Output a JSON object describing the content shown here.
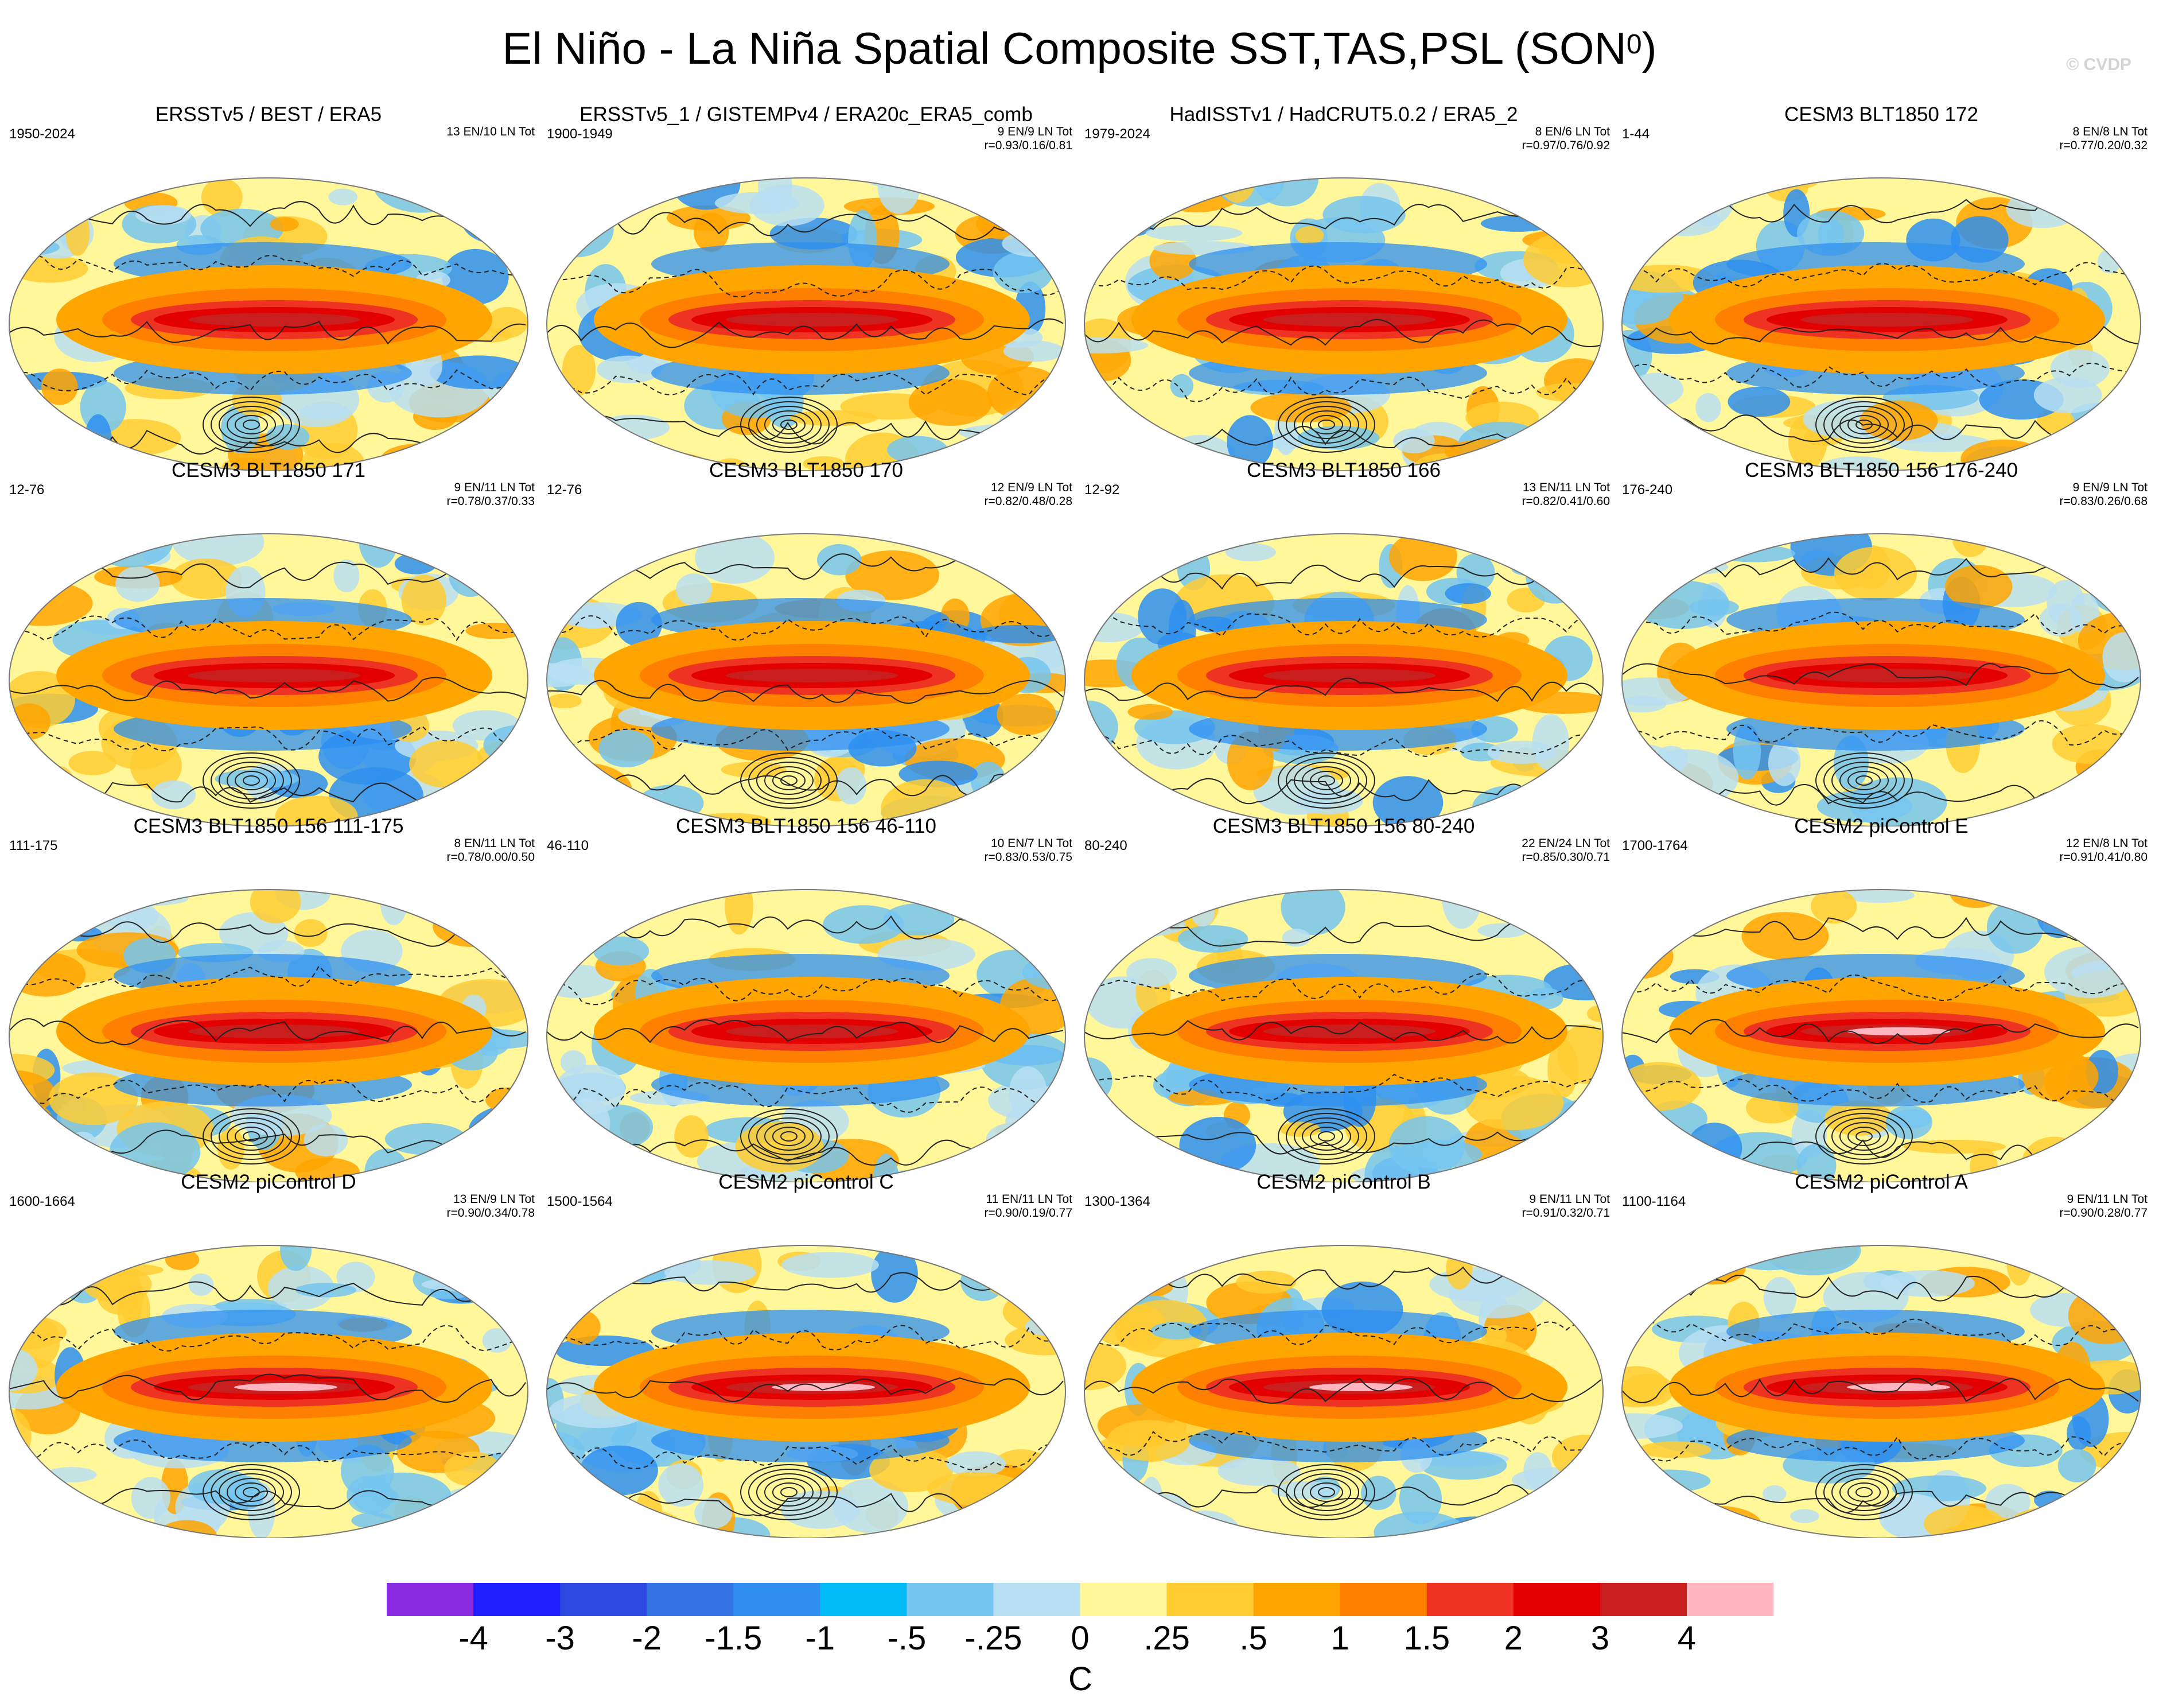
{
  "title": "El Niño - La Niña Spatial Composite SST,TAS,PSL (SON",
  "title_superscript": "0",
  "title_close": ")",
  "watermark": "© CVDP",
  "chart_data": {
    "type": "heatmap",
    "description_fields": [
      "title",
      "period",
      "count",
      "stats"
    ],
    "panels": [
      {
        "title": "ERSSTv5 / BEST / ERA5",
        "period": "1950-2024",
        "count": "13 EN/10 LN Tot",
        "stats": ""
      },
      {
        "title": "ERSSTv5_1 / GISTEMPv4 / ERA20c_ERA5_comb",
        "period": "1900-1949",
        "count": "9 EN/9 LN Tot",
        "stats": "r=0.93/0.16/0.81"
      },
      {
        "title": "HadISSTv1 / HadCRUT5.0.2 / ERA5_2",
        "period": "1979-2024",
        "count": "8 EN/6 LN Tot",
        "stats": "r=0.97/0.76/0.92"
      },
      {
        "title": "CESM3 BLT1850 172",
        "period": "1-44",
        "count": "8 EN/8 LN Tot",
        "stats": "r=0.77/0.20/0.32"
      },
      {
        "title": "CESM3 BLT1850 171",
        "period": "12-76",
        "count": "9 EN/11 LN Tot",
        "stats": "r=0.78/0.37/0.33"
      },
      {
        "title": "CESM3 BLT1850 170",
        "period": "12-76",
        "count": "12 EN/9 LN Tot",
        "stats": "r=0.82/0.48/0.28"
      },
      {
        "title": "CESM3 BLT1850 166",
        "period": "12-92",
        "count": "13 EN/11 LN Tot",
        "stats": "r=0.82/0.41/0.60"
      },
      {
        "title": "CESM3 BLT1850 156 176-240",
        "period": "176-240",
        "count": "9 EN/9 LN Tot",
        "stats": "r=0.83/0.26/0.68"
      },
      {
        "title": "CESM3 BLT1850 156 111-175",
        "period": "111-175",
        "count": "8 EN/11 LN Tot",
        "stats": "r=0.78/0.00/0.50"
      },
      {
        "title": "CESM3 BLT1850 156 46-110",
        "period": "46-110",
        "count": "10 EN/7 LN Tot",
        "stats": "r=0.83/0.53/0.75"
      },
      {
        "title": "CESM3 BLT1850 156 80-240",
        "period": "80-240",
        "count": "22 EN/24 LN Tot",
        "stats": "r=0.85/0.30/0.71"
      },
      {
        "title": "CESM2 piControl E",
        "period": "1700-1764",
        "count": "12 EN/8 LN Tot",
        "stats": "r=0.91/0.41/0.80"
      },
      {
        "title": "CESM2 piControl D",
        "period": "1600-1664",
        "count": "13 EN/9 LN Tot",
        "stats": "r=0.90/0.34/0.78"
      },
      {
        "title": "CESM2 piControl C",
        "period": "1500-1564",
        "count": "11 EN/11 LN Tot",
        "stats": "r=0.90/0.19/0.77"
      },
      {
        "title": "CESM2 piControl B",
        "period": "1300-1364",
        "count": "9 EN/11 LN Tot",
        "stats": "r=0.91/0.32/0.71"
      },
      {
        "title": "CESM2 piControl A",
        "period": "1100-1164",
        "count": "9 EN/11 LN Tot",
        "stats": "r=0.90/0.28/0.77"
      }
    ],
    "colorbar": {
      "colors": [
        "#8a2be2",
        "#1e1eff",
        "#2b49e0",
        "#3473e3",
        "#2e8ff0",
        "#00bbf5",
        "#76c6f0",
        "#b8dff2",
        "#fff79a",
        "#ffcc33",
        "#ffa500",
        "#ff7f00",
        "#ee3322",
        "#e20000",
        "#c81e1e",
        "#ffb6c1"
      ],
      "labels": [
        "-4",
        "-3",
        "-2",
        "-1.5",
        "-1",
        "-.5",
        "-.25",
        "0",
        ".25",
        ".5",
        "1",
        "1.5",
        "2",
        "3",
        "4"
      ],
      "units": "C"
    }
  }
}
